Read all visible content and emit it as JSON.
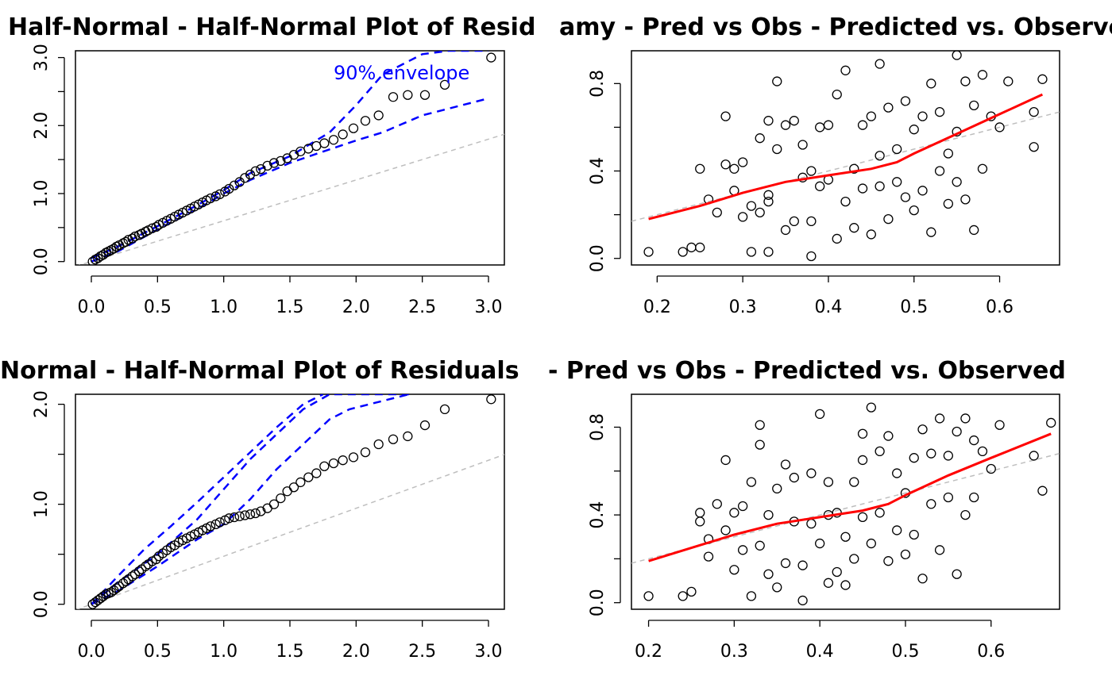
{
  "chart_data": [
    {
      "type": "scatter",
      "title": "Half-Normal - Half-Normal Plot of Resid",
      "xlabel": "",
      "ylabel": "",
      "xlim": [
        -0.12,
        3.12
      ],
      "ylim": [
        -0.05,
        3.1
      ],
      "x_ticks": [
        "0.0",
        "0.5",
        "1.0",
        "1.5",
        "2.0",
        "2.5",
        "3.0"
      ],
      "y_ticks": [
        "0.0",
        "1.0",
        "2.0",
        "3.0"
      ],
      "annotation": "90% envelope",
      "colors": {
        "points": "#000000",
        "envelope": "#0000ff",
        "reference": "#bebebe"
      },
      "reference_line": {
        "intercept": 0.0,
        "slope": 0.6
      },
      "points": {
        "x": [
          0.01,
          0.03,
          0.05,
          0.07,
          0.09,
          0.11,
          0.13,
          0.15,
          0.17,
          0.19,
          0.21,
          0.24,
          0.26,
          0.28,
          0.31,
          0.33,
          0.36,
          0.38,
          0.41,
          0.43,
          0.46,
          0.49,
          0.51,
          0.54,
          0.57,
          0.6,
          0.63,
          0.66,
          0.69,
          0.72,
          0.75,
          0.78,
          0.81,
          0.84,
          0.87,
          0.9,
          0.94,
          0.97,
          1.01,
          1.04,
          1.08,
          1.12,
          1.16,
          1.2,
          1.24,
          1.28,
          1.33,
          1.38,
          1.43,
          1.48,
          1.53,
          1.58,
          1.64,
          1.7,
          1.76,
          1.83,
          1.9,
          1.98,
          2.07,
          2.17,
          2.28,
          2.39,
          2.52,
          2.67,
          3.02
        ],
        "y": [
          0.0,
          0.03,
          0.05,
          0.08,
          0.1,
          0.13,
          0.15,
          0.17,
          0.19,
          0.22,
          0.24,
          0.27,
          0.29,
          0.32,
          0.34,
          0.37,
          0.39,
          0.41,
          0.44,
          0.46,
          0.49,
          0.51,
          0.54,
          0.57,
          0.6,
          0.63,
          0.66,
          0.69,
          0.72,
          0.75,
          0.78,
          0.81,
          0.84,
          0.87,
          0.9,
          0.93,
          0.96,
          0.99,
          1.03,
          1.07,
          1.12,
          1.17,
          1.23,
          1.28,
          1.33,
          1.36,
          1.41,
          1.45,
          1.48,
          1.52,
          1.57,
          1.62,
          1.66,
          1.7,
          1.74,
          1.79,
          1.87,
          1.96,
          2.07,
          2.15,
          2.42,
          2.45,
          2.45,
          2.6,
          3.0
        ]
      },
      "envelope": {
        "x": [
          0.0,
          0.2,
          0.5,
          0.8,
          1.0,
          1.2,
          1.5,
          1.8,
          2.0,
          2.2,
          2.5,
          2.7,
          3.0
        ],
        "lower": [
          0.0,
          0.15,
          0.47,
          0.77,
          1.0,
          1.2,
          1.45,
          1.65,
          1.78,
          1.9,
          2.15,
          2.25,
          2.4
        ],
        "upper": [
          0.05,
          0.22,
          0.52,
          0.83,
          1.05,
          1.3,
          1.55,
          1.9,
          2.3,
          2.75,
          3.05,
          3.1,
          3.1
        ]
      }
    },
    {
      "type": "scatter",
      "title": "amy - Pred vs Obs - Predicted vs. Observed",
      "xlabel": "",
      "ylabel": "",
      "xlim": [
        0.17,
        0.67
      ],
      "ylim": [
        -0.03,
        0.95
      ],
      "x_ticks": [
        "0.2",
        "0.3",
        "0.4",
        "0.5",
        "0.6"
      ],
      "y_ticks": [
        "0.0",
        "0.4",
        "0.8"
      ],
      "colors": {
        "points": "#000000",
        "smooth": "#ff0000",
        "reference": "#bebebe"
      },
      "reference_line": {
        "intercept": 0.0,
        "slope": 1.0
      },
      "points": {
        "x": [
          0.19,
          0.23,
          0.24,
          0.25,
          0.25,
          0.26,
          0.27,
          0.28,
          0.28,
          0.29,
          0.29,
          0.3,
          0.3,
          0.31,
          0.31,
          0.32,
          0.32,
          0.33,
          0.33,
          0.33,
          0.34,
          0.34,
          0.35,
          0.35,
          0.36,
          0.36,
          0.37,
          0.37,
          0.38,
          0.38,
          0.38,
          0.39,
          0.39,
          0.4,
          0.4,
          0.41,
          0.41,
          0.42,
          0.42,
          0.43,
          0.43,
          0.44,
          0.44,
          0.45,
          0.45,
          0.46,
          0.46,
          0.47,
          0.47,
          0.48,
          0.48,
          0.49,
          0.49,
          0.5,
          0.5,
          0.51,
          0.51,
          0.52,
          0.52,
          0.53,
          0.53,
          0.54,
          0.54,
          0.55,
          0.55,
          0.56,
          0.56,
          0.57,
          0.57,
          0.58,
          0.58,
          0.59,
          0.6,
          0.61,
          0.64,
          0.64,
          0.65,
          0.55,
          0.46,
          0.33
        ],
        "y": [
          0.03,
          0.03,
          0.05,
          0.41,
          0.05,
          0.27,
          0.21,
          0.43,
          0.65,
          0.31,
          0.41,
          0.19,
          0.44,
          0.24,
          0.03,
          0.55,
          0.21,
          0.63,
          0.26,
          0.03,
          0.81,
          0.5,
          0.13,
          0.61,
          0.17,
          0.63,
          0.37,
          0.52,
          0.17,
          0.01,
          0.4,
          0.6,
          0.33,
          0.36,
          0.61,
          0.75,
          0.09,
          0.86,
          0.26,
          0.41,
          0.14,
          0.61,
          0.32,
          0.65,
          0.11,
          0.47,
          0.33,
          0.69,
          0.18,
          0.5,
          0.35,
          0.72,
          0.28,
          0.59,
          0.22,
          0.65,
          0.31,
          0.8,
          0.12,
          0.4,
          0.67,
          0.48,
          0.25,
          0.93,
          0.58,
          0.81,
          0.27,
          0.7,
          0.13,
          0.84,
          0.41,
          0.65,
          0.6,
          0.81,
          0.67,
          0.51,
          0.82,
          0.35,
          0.89,
          0.29
        ]
      },
      "smooth": {
        "x": [
          0.19,
          0.25,
          0.3,
          0.35,
          0.4,
          0.45,
          0.48,
          0.5,
          0.55,
          0.6,
          0.65
        ],
        "y": [
          0.18,
          0.24,
          0.3,
          0.35,
          0.38,
          0.41,
          0.44,
          0.48,
          0.57,
          0.66,
          0.75
        ]
      }
    },
    {
      "type": "scatter",
      "title": "Normal - Half-Normal Plot of Residuals",
      "xlabel": "",
      "ylabel": "",
      "xlim": [
        -0.12,
        3.12
      ],
      "ylim": [
        -0.05,
        2.1
      ],
      "x_ticks": [
        "0.0",
        "0.5",
        "1.0",
        "1.5",
        "2.0",
        "2.5",
        "3.0"
      ],
      "y_ticks": [
        "0.0",
        "1.0",
        "2.0"
      ],
      "colors": {
        "points": "#000000",
        "envelope": "#0000ff",
        "reference": "#bebebe"
      },
      "reference_line": {
        "intercept": 0.0,
        "slope": 0.48
      },
      "points": {
        "x": [
          0.01,
          0.03,
          0.05,
          0.07,
          0.09,
          0.11,
          0.13,
          0.15,
          0.17,
          0.19,
          0.21,
          0.24,
          0.26,
          0.28,
          0.31,
          0.33,
          0.36,
          0.38,
          0.41,
          0.43,
          0.46,
          0.49,
          0.51,
          0.54,
          0.57,
          0.6,
          0.63,
          0.66,
          0.69,
          0.72,
          0.75,
          0.78,
          0.81,
          0.84,
          0.87,
          0.9,
          0.94,
          0.97,
          1.01,
          1.04,
          1.08,
          1.12,
          1.16,
          1.2,
          1.24,
          1.28,
          1.33,
          1.38,
          1.43,
          1.48,
          1.53,
          1.58,
          1.64,
          1.7,
          1.76,
          1.83,
          1.9,
          1.98,
          2.07,
          2.17,
          2.28,
          2.39,
          2.52,
          2.67,
          3.02
        ],
        "y": [
          0.0,
          0.02,
          0.04,
          0.06,
          0.08,
          0.1,
          0.11,
          0.12,
          0.14,
          0.16,
          0.18,
          0.21,
          0.23,
          0.25,
          0.28,
          0.3,
          0.33,
          0.35,
          0.38,
          0.4,
          0.43,
          0.45,
          0.48,
          0.51,
          0.54,
          0.57,
          0.59,
          0.62,
          0.64,
          0.66,
          0.68,
          0.7,
          0.72,
          0.74,
          0.76,
          0.78,
          0.8,
          0.82,
          0.84,
          0.86,
          0.87,
          0.88,
          0.89,
          0.9,
          0.91,
          0.93,
          0.96,
          1.0,
          1.06,
          1.13,
          1.17,
          1.22,
          1.27,
          1.31,
          1.38,
          1.41,
          1.44,
          1.47,
          1.52,
          1.6,
          1.65,
          1.68,
          1.79,
          1.95,
          2.05
        ]
      },
      "envelope": {
        "x": [
          0.0,
          0.2,
          0.5,
          0.8,
          1.0,
          1.2,
          1.4,
          1.6,
          1.8,
          1.95,
          2.1,
          2.4
        ],
        "lower": [
          0.0,
          0.13,
          0.38,
          0.65,
          0.8,
          1.05,
          1.35,
          1.6,
          1.85,
          1.95,
          2.0,
          2.1
        ],
        "upper": [
          0.0,
          0.22,
          0.5,
          0.85,
          1.15,
          1.45,
          1.7,
          1.95,
          2.1,
          2.1,
          2.1,
          2.1
        ]
      },
      "envelope_upper2": {
        "x": [
          0.0,
          0.2,
          0.4,
          0.6,
          0.8,
          1.0,
          1.2,
          1.4,
          1.6,
          1.75
        ],
        "y": [
          0.0,
          0.28,
          0.55,
          0.78,
          1.02,
          1.27,
          1.52,
          1.77,
          2.0,
          2.1
        ]
      }
    },
    {
      "type": "scatter",
      "title": "- Pred vs Obs - Predicted vs. Observed",
      "xlabel": "",
      "ylabel": "",
      "xlim": [
        0.18,
        0.68
      ],
      "ylim": [
        -0.03,
        0.95
      ],
      "x_ticks": [
        "0.2",
        "0.3",
        "0.4",
        "0.5",
        "0.6"
      ],
      "y_ticks": [
        "0.0",
        "0.4",
        "0.8"
      ],
      "colors": {
        "points": "#000000",
        "smooth": "#ff0000",
        "reference": "#bebebe"
      },
      "reference_line": {
        "intercept": 0.0,
        "slope": 1.0
      },
      "points": {
        "x": [
          0.2,
          0.24,
          0.25,
          0.26,
          0.26,
          0.27,
          0.27,
          0.28,
          0.29,
          0.29,
          0.3,
          0.3,
          0.31,
          0.31,
          0.32,
          0.32,
          0.33,
          0.33,
          0.34,
          0.34,
          0.35,
          0.35,
          0.36,
          0.36,
          0.37,
          0.37,
          0.38,
          0.38,
          0.39,
          0.39,
          0.4,
          0.4,
          0.41,
          0.41,
          0.42,
          0.42,
          0.43,
          0.43,
          0.44,
          0.44,
          0.45,
          0.45,
          0.46,
          0.46,
          0.47,
          0.47,
          0.48,
          0.48,
          0.49,
          0.49,
          0.5,
          0.5,
          0.51,
          0.51,
          0.52,
          0.52,
          0.53,
          0.53,
          0.54,
          0.54,
          0.55,
          0.55,
          0.56,
          0.56,
          0.57,
          0.57,
          0.58,
          0.58,
          0.59,
          0.6,
          0.61,
          0.65,
          0.66,
          0.67,
          0.45,
          0.33,
          0.41
        ],
        "y": [
          0.03,
          0.03,
          0.05,
          0.41,
          0.37,
          0.21,
          0.29,
          0.45,
          0.65,
          0.33,
          0.41,
          0.15,
          0.24,
          0.44,
          0.55,
          0.03,
          0.81,
          0.26,
          0.4,
          0.13,
          0.52,
          0.07,
          0.63,
          0.18,
          0.37,
          0.57,
          0.17,
          0.01,
          0.59,
          0.36,
          0.86,
          0.27,
          0.09,
          0.55,
          0.41,
          0.14,
          0.3,
          0.08,
          0.55,
          0.2,
          0.65,
          0.39,
          0.89,
          0.27,
          0.69,
          0.41,
          0.76,
          0.19,
          0.59,
          0.33,
          0.5,
          0.22,
          0.66,
          0.31,
          0.79,
          0.11,
          0.45,
          0.68,
          0.24,
          0.84,
          0.48,
          0.67,
          0.13,
          0.78,
          0.84,
          0.4,
          0.74,
          0.48,
          0.69,
          0.61,
          0.81,
          0.67,
          0.51,
          0.82,
          0.77,
          0.72,
          0.4
        ]
      },
      "smooth": {
        "x": [
          0.2,
          0.25,
          0.3,
          0.35,
          0.4,
          0.45,
          0.48,
          0.5,
          0.55,
          0.6,
          0.67
        ],
        "y": [
          0.19,
          0.25,
          0.31,
          0.36,
          0.39,
          0.42,
          0.45,
          0.49,
          0.58,
          0.66,
          0.77
        ]
      }
    }
  ]
}
